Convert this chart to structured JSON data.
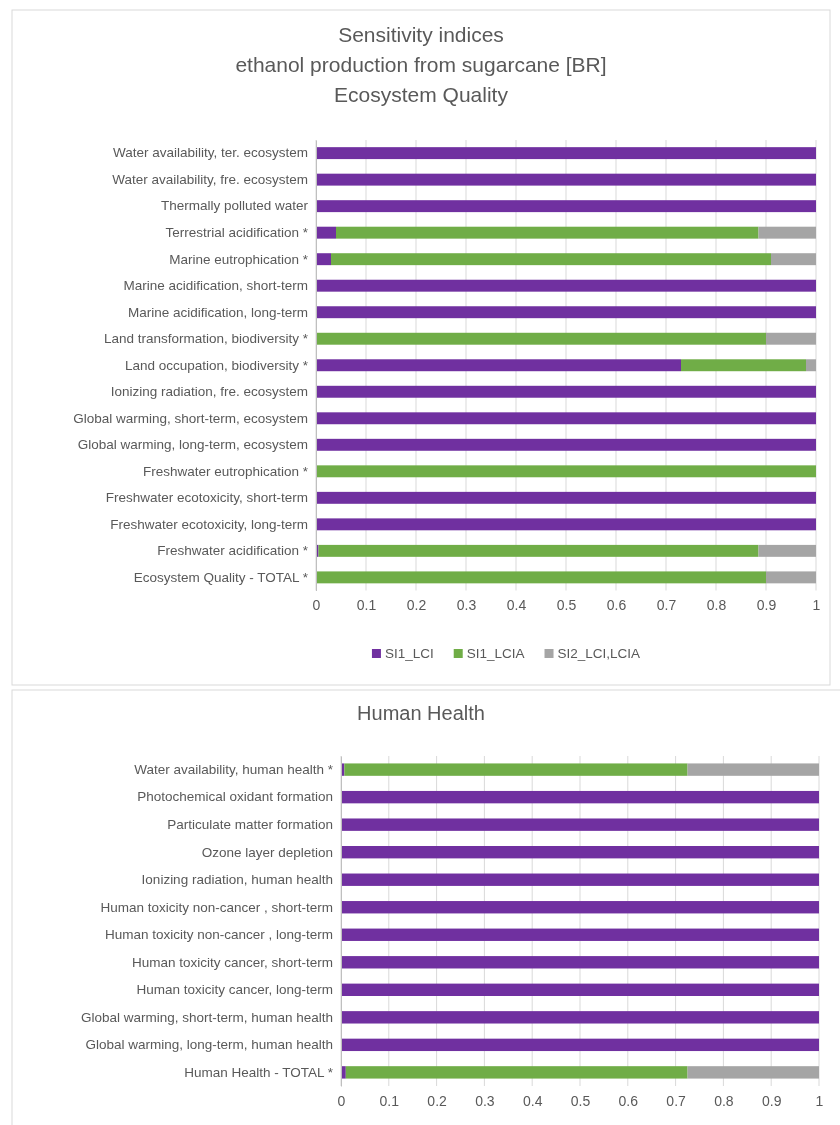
{
  "chart_data": [
    {
      "type": "bar",
      "title": "Sensitivity indices\nethanol production from sugarcane [BR]\nEcosystem Quality",
      "orientation": "horizontal",
      "stacked": true,
      "grid": "x",
      "legend": "bottom",
      "categories": [
        "Water availability, ter. ecosystem",
        "Water availability, fre. ecosystem",
        "Thermally polluted water",
        "Terrestrial acidification *",
        "Marine eutrophication *",
        "Marine acidification, short-term",
        "Marine acidification, long-term",
        "Land transformation, biodiversity *",
        "Land occupation, biodiversity *",
        "Ionizing radiation, fre. ecosystem",
        "Global warming, short-term, ecosystem",
        "Global warming, long-term, ecosystem",
        "Freshwater eutrophication *",
        "Freshwater ecotoxicity, short-term",
        "Freshwater ecotoxicity, long-term",
        "Freshwater acidification *",
        "Ecosystem Quality - TOTAL *"
      ],
      "xlim": [
        0,
        1
      ],
      "xticks": [
        0,
        0.1,
        0.2,
        0.3,
        0.4,
        0.5,
        0.6,
        0.7,
        0.8,
        0.9,
        1
      ],
      "series": [
        {
          "name": "SI1_LCI",
          "color": "#7030a0",
          "values": [
            1,
            1,
            1,
            0.04,
            0.03,
            1,
            1,
            0,
            0.73,
            1,
            1,
            1,
            0,
            1,
            1,
            0.005,
            0
          ]
        },
        {
          "name": "SI1_LCIA",
          "color": "#70ad47",
          "values": [
            0,
            0,
            0,
            0.845,
            0.88,
            0,
            0,
            0.9,
            0.25,
            0,
            0,
            0,
            1,
            0,
            0,
            0.88,
            0.9
          ]
        },
        {
          "name": "SI2_LCI,LCIA",
          "color": "#a5a5a5",
          "values": [
            0,
            0,
            0,
            0.115,
            0.09,
            0,
            0,
            0.1,
            0.02,
            0,
            0,
            0,
            0,
            0,
            0,
            0.115,
            0.1
          ]
        }
      ]
    },
    {
      "type": "bar",
      "title": "Human Health",
      "orientation": "horizontal",
      "stacked": true,
      "grid": "x",
      "categories": [
        "Water availability, human health *",
        "Photochemical oxidant formation",
        "Particulate matter formation",
        "Ozone layer depletion",
        "Ionizing radiation, human health",
        "Human toxicity non-cancer , short-term",
        "Human toxicity non-cancer , long-term",
        "Human toxicity cancer, short-term",
        "Human toxicity cancer, long-term",
        "Global warming, short-term, human health",
        "Global warming, long-term, human health",
        "Human Health - TOTAL *"
      ],
      "xlim": [
        0,
        1
      ],
      "xticks": [
        0,
        0.1,
        0.2,
        0.3,
        0.4,
        0.5,
        0.6,
        0.7,
        0.8,
        0.9,
        1
      ],
      "series": [
        {
          "color": "#7030a0",
          "values": [
            0.007,
            1,
            1,
            1,
            1,
            1,
            1,
            1,
            1,
            1,
            1,
            0.01
          ]
        },
        {
          "color": "#70ad47",
          "values": [
            0.718,
            0,
            0,
            0,
            0,
            0,
            0,
            0,
            0,
            0,
            0,
            0.715
          ]
        },
        {
          "color": "#a5a5a5",
          "values": [
            0.275,
            0,
            0,
            0,
            0,
            0,
            0,
            0,
            0,
            0,
            0,
            0.275
          ]
        }
      ]
    }
  ]
}
